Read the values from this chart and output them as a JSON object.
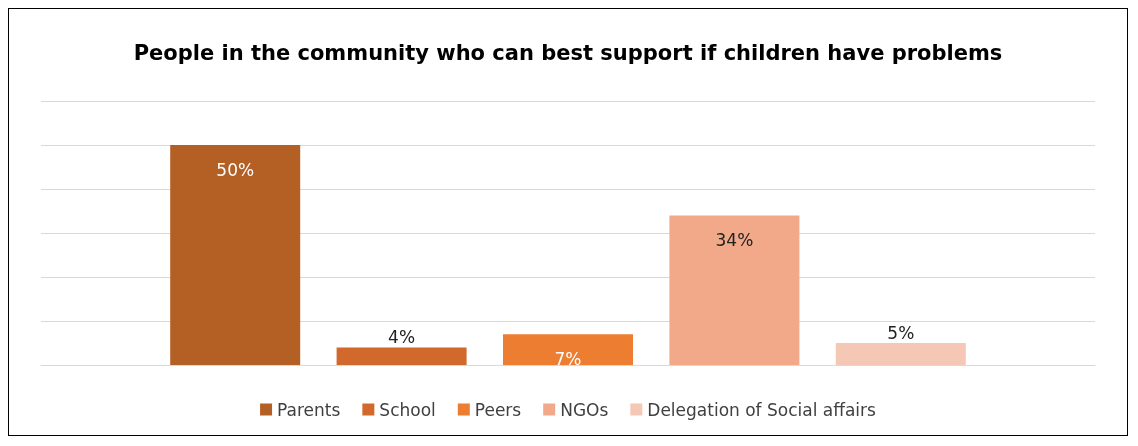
{
  "chart_data": {
    "type": "bar",
    "title": "People in the community who can best support if children have problems",
    "categories": [
      null
    ],
    "series": [
      {
        "name": "Parents",
        "color": "#b45f24",
        "values": [
          50
        ],
        "value_labels": [
          "50%"
        ]
      },
      {
        "name": "School",
        "color": "#d1692c",
        "values": [
          4
        ],
        "value_labels": [
          "4%"
        ]
      },
      {
        "name": "Peers",
        "color": "#ed7d31",
        "values": [
          7
        ],
        "value_labels": [
          "7%"
        ]
      },
      {
        "name": "NGOs",
        "color": "#f1a98a",
        "values": [
          34
        ],
        "value_labels": [
          "34%"
        ]
      },
      {
        "name": "Delegation of Social affairs",
        "color": "#f5c8b5",
        "values": [
          5
        ],
        "value_labels": [
          "5%"
        ]
      }
    ],
    "ylim": [
      0,
      60
    ],
    "yticks": [
      0,
      10,
      20,
      30,
      40,
      50,
      60
    ],
    "grid": "y",
    "legend": "bottom",
    "tick_labels": false
  }
}
